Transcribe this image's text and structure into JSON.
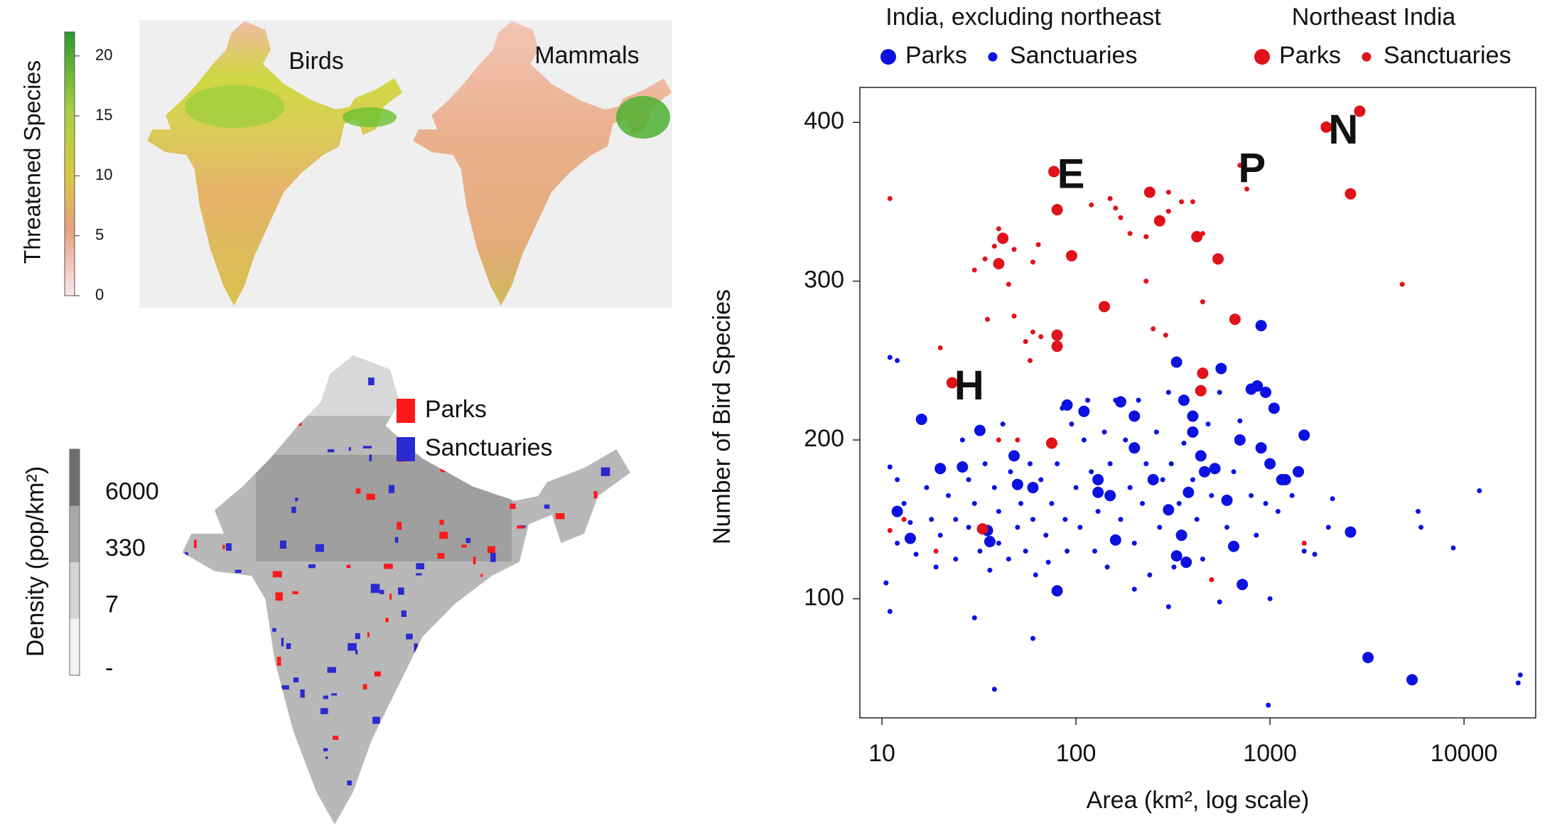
{
  "maps": {
    "threatened": {
      "birds_label": "Birds",
      "mammals_label": "Mammals",
      "colorbar_title": "Threatened Species",
      "range": [
        0,
        22
      ],
      "ticks": [
        0,
        5,
        10,
        15,
        20
      ]
    },
    "protected": {
      "legend": [
        "Parks",
        "Sanctuaries"
      ],
      "legend_colors": [
        "#ff1a1a",
        "#2a2ad0"
      ],
      "colorbar_title": "Density (pop/km²)",
      "colorbar_labels": [
        "-",
        "7",
        "330",
        "6000"
      ]
    }
  },
  "chart_data": {
    "type": "scatter",
    "x_label": "Area (km², log scale)",
    "y_label": "Number of Bird Species",
    "log_x": true,
    "xlim": [
      7.7,
      23400
    ],
    "ylim": [
      25,
      422
    ],
    "xticks": [
      10,
      100,
      1000,
      10000
    ],
    "yticks": [
      100,
      200,
      300,
      400
    ],
    "legend_groups": [
      "India, excluding northeast",
      "Northeast India"
    ],
    "annotations": [
      {
        "text": "H",
        "x": 23,
        "y": 236
      },
      {
        "text": "E",
        "x": 77,
        "y": 369
      },
      {
        "text": "P",
        "x": 660,
        "y": 373
      },
      {
        "text": "N",
        "x": 1950,
        "y": 397
      }
    ],
    "series": [
      {
        "name": "Parks",
        "color": "#0b12e0",
        "marker": "large",
        "x": [
          16,
          20,
          26,
          32,
          36,
          35,
          48,
          50,
          80,
          90,
          110,
          130,
          170,
          160,
          130,
          200,
          250,
          300,
          330,
          360,
          400,
          400,
          380,
          350,
          370,
          330,
          440,
          460,
          520,
          560,
          600,
          650,
          720,
          800,
          860,
          900,
          900,
          950,
          1050,
          1000,
          1150,
          1400,
          1500,
          2600,
          3200,
          5400,
          14,
          12,
          60,
          150,
          200,
          1200,
          700
        ],
        "values": [
          213,
          182,
          183,
          206,
          136,
          143,
          190,
          172,
          105,
          222,
          218,
          175,
          224,
          137,
          167,
          215,
          175,
          156,
          249,
          225,
          215,
          205,
          167,
          140,
          123,
          127,
          190,
          180,
          182,
          245,
          162,
          133,
          109,
          232,
          234,
          195,
          272,
          230,
          220,
          185,
          175,
          180,
          203,
          142,
          63,
          49,
          138,
          155,
          170,
          165,
          195,
          175,
          200
        ]
      },
      {
        "name": "Sanctuaries",
        "color": "#0b12e0",
        "marker": "small",
        "x": [
          11,
          12,
          13,
          14,
          12,
          15,
          17,
          18,
          20,
          19,
          22,
          24,
          24,
          26,
          28,
          28,
          30,
          32,
          34,
          36,
          38,
          40,
          40,
          42,
          45,
          46,
          50,
          52,
          55,
          58,
          60,
          62,
          66,
          70,
          72,
          75,
          80,
          85,
          88,
          90,
          95,
          100,
          105,
          110,
          115,
          120,
          125,
          130,
          140,
          145,
          150,
          160,
          170,
          180,
          190,
          200,
          210,
          220,
          230,
          240,
          260,
          270,
          280,
          300,
          310,
          320,
          340,
          360,
          400,
          420,
          450,
          480,
          500,
          550,
          600,
          650,
          700,
          800,
          850,
          950,
          1100,
          1300,
          1500,
          10.5,
          11,
          11,
          12,
          30,
          38,
          60,
          980,
          5800,
          6000,
          8800,
          12000,
          19500,
          19000,
          2100,
          2000,
          1700,
          1000,
          550,
          300,
          200
        ],
        "values": [
          183,
          175,
          160,
          148,
          135,
          128,
          170,
          150,
          140,
          120,
          165,
          150,
          125,
          200,
          175,
          145,
          160,
          130,
          185,
          118,
          170,
          155,
          135,
          210,
          125,
          180,
          145,
          160,
          130,
          185,
          150,
          115,
          175,
          140,
          123,
          160,
          185,
          220,
          150,
          130,
          210,
          170,
          145,
          200,
          225,
          180,
          130,
          155,
          205,
          120,
          185,
          225,
          150,
          200,
          170,
          135,
          225,
          160,
          185,
          115,
          205,
          145,
          175,
          230,
          185,
          120,
          160,
          198,
          175,
          150,
          125,
          210,
          165,
          230,
          145,
          180,
          212,
          165,
          140,
          160,
          155,
          165,
          130,
          110,
          92,
          252,
          250,
          88,
          43,
          75,
          33,
          155,
          145,
          132,
          168,
          52,
          47,
          163,
          145,
          128,
          100,
          98,
          95,
          106
        ]
      },
      {
        "name": "Parks",
        "color": "#e0121a",
        "marker": "large",
        "x": [
          77,
          80,
          42,
          40,
          95,
          140,
          240,
          270,
          420,
          540,
          660,
          80,
          80,
          75,
          33,
          450,
          440,
          1950,
          2900,
          2600,
          23
        ],
        "values": [
          369,
          345,
          327,
          311,
          316,
          284,
          356,
          338,
          328,
          314,
          276,
          266,
          259,
          198,
          144,
          242,
          231,
          397,
          407,
          355,
          236
        ]
      },
      {
        "name": "Sanctuaries",
        "color": "#e0121a",
        "marker": "small",
        "x": [
          11,
          40,
          38,
          48,
          30,
          34,
          64,
          60,
          45,
          35,
          48,
          55,
          60,
          66,
          58,
          20,
          120,
          150,
          160,
          170,
          190,
          230,
          300,
          350,
          300,
          400,
          450,
          230,
          450,
          290,
          250,
          700,
          760,
          40,
          50,
          13,
          11,
          19,
          500,
          4800,
          1500
        ],
        "values": [
          352,
          333,
          322,
          320,
          307,
          314,
          323,
          312,
          298,
          276,
          278,
          262,
          268,
          265,
          250,
          258,
          348,
          352,
          346,
          340,
          330,
          328,
          356,
          350,
          344,
          350,
          330,
          300,
          287,
          266,
          270,
          373,
          358,
          200,
          200,
          150,
          143,
          130,
          112,
          298,
          135
        ]
      }
    ]
  }
}
